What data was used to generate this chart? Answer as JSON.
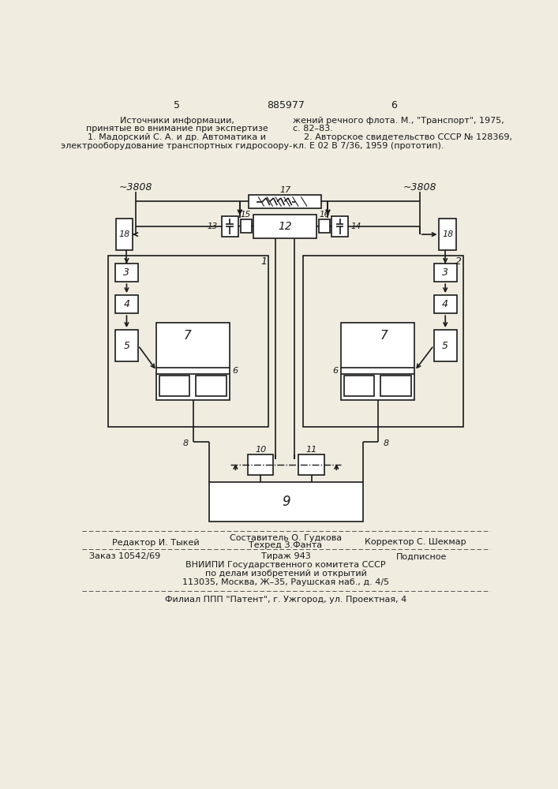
{
  "bg_color": "#f0ece0",
  "line_color": "#1a1a1a",
  "ref_col1_lines": [
    "Источники информации,",
    "принятые во внимание при экспертизе",
    "1. Мадорский С. А. и др. Автоматика и",
    "электрооборудование транспортных гидросоору-"
  ],
  "ref_col2_lines": [
    "жений речного флота. М., \"Транспорт\", 1975,",
    "с. 82–83.",
    "    2. Авторское свидетельство СССР № 128369,",
    "кл. Е 02 В 7/36, 1959 (прототип)."
  ],
  "footer_sostavitel": "Составитель О. Гудкова",
  "footer_tehred": "Техред З.Фанта",
  "footer_editor": "Редактор И. Тыкей",
  "footer_corrector": "Корректор С. Шекмар",
  "footer_order": "Заказ 10542/69",
  "footer_tirazh": "Тираж 943",
  "footer_podpisnoe": "Подписное",
  "footer_vniipii": "ВНИИПИ Государственного комитета СССР",
  "footer_po_delam": "по делам изобретений и открытий",
  "footer_address": "113035, Москва, Ж–35, Раушская наб., д. 4/5",
  "footer_filial": "Филиал ППП \"Патент\", г. Ужгород, ул. Проектная, 4"
}
